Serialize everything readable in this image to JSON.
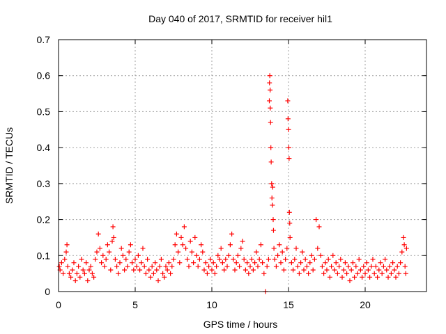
{
  "chart_data": {
    "type": "scatter",
    "title": "Day 040 of 2017, SRMTID for receiver hil1",
    "xlabel": "GPS time / hours",
    "ylabel": "SRMTID / TECUs",
    "xlim": [
      0,
      24
    ],
    "ylim": [
      0,
      0.7
    ],
    "xticks": [
      0,
      5,
      10,
      15,
      20
    ],
    "yticks": [
      0,
      0.1,
      0.2,
      0.3,
      0.4,
      0.5,
      0.6,
      0.7
    ],
    "grid": true,
    "marker": "+",
    "color": "#ff0000",
    "series": [
      {
        "name": "SRMTID",
        "points": [
          [
            0.05,
            0.07
          ],
          [
            0.1,
            0.06
          ],
          [
            0.2,
            0.08
          ],
          [
            0.3,
            0.05
          ],
          [
            0.4,
            0.09
          ],
          [
            0.5,
            0.11
          ],
          [
            0.55,
            0.13
          ],
          [
            0.6,
            0.07
          ],
          [
            0.7,
            0.05
          ],
          [
            0.8,
            0.04
          ],
          [
            0.9,
            0.06
          ],
          [
            1.0,
            0.08
          ],
          [
            1.1,
            0.03
          ],
          [
            1.2,
            0.05
          ],
          [
            1.3,
            0.07
          ],
          [
            1.4,
            0.04
          ],
          [
            1.5,
            0.09
          ],
          [
            1.6,
            0.06
          ],
          [
            1.7,
            0.05
          ],
          [
            1.8,
            0.08
          ],
          [
            1.9,
            0.03
          ],
          [
            2.0,
            0.06
          ],
          [
            2.1,
            0.07
          ],
          [
            2.2,
            0.05
          ],
          [
            2.3,
            0.04
          ],
          [
            2.4,
            0.09
          ],
          [
            2.5,
            0.11
          ],
          [
            2.6,
            0.16
          ],
          [
            2.7,
            0.12
          ],
          [
            2.8,
            0.08
          ],
          [
            2.9,
            0.1
          ],
          [
            3.0,
            0.07
          ],
          [
            3.1,
            0.09
          ],
          [
            3.2,
            0.13
          ],
          [
            3.3,
            0.11
          ],
          [
            3.4,
            0.06
          ],
          [
            3.5,
            0.14
          ],
          [
            3.55,
            0.18
          ],
          [
            3.6,
            0.15
          ],
          [
            3.7,
            0.09
          ],
          [
            3.8,
            0.07
          ],
          [
            3.9,
            0.05
          ],
          [
            4.0,
            0.08
          ],
          [
            4.1,
            0.12
          ],
          [
            4.2,
            0.1
          ],
          [
            4.3,
            0.06
          ],
          [
            4.4,
            0.09
          ],
          [
            4.5,
            0.07
          ],
          [
            4.6,
            0.11
          ],
          [
            4.7,
            0.13
          ],
          [
            4.8,
            0.08
          ],
          [
            4.9,
            0.06
          ],
          [
            5.0,
            0.09
          ],
          [
            5.1,
            0.07
          ],
          [
            5.2,
            0.1
          ],
          [
            5.3,
            0.06
          ],
          [
            5.4,
            0.08
          ],
          [
            5.5,
            0.12
          ],
          [
            5.6,
            0.07
          ],
          [
            5.7,
            0.05
          ],
          [
            5.8,
            0.09
          ],
          [
            5.9,
            0.06
          ],
          [
            6.0,
            0.04
          ],
          [
            6.1,
            0.07
          ],
          [
            6.2,
            0.05
          ],
          [
            6.3,
            0.08
          ],
          [
            6.4,
            0.06
          ],
          [
            6.5,
            0.03
          ],
          [
            6.6,
            0.07
          ],
          [
            6.7,
            0.09
          ],
          [
            6.8,
            0.05
          ],
          [
            6.9,
            0.04
          ],
          [
            7.0,
            0.07
          ],
          [
            7.1,
            0.06
          ],
          [
            7.2,
            0.08
          ],
          [
            7.3,
            0.05
          ],
          [
            7.4,
            0.07
          ],
          [
            7.5,
            0.09
          ],
          [
            7.6,
            0.13
          ],
          [
            7.7,
            0.16
          ],
          [
            7.8,
            0.11
          ],
          [
            7.9,
            0.08
          ],
          [
            8.0,
            0.15
          ],
          [
            8.1,
            0.13
          ],
          [
            8.2,
            0.18
          ],
          [
            8.3,
            0.12
          ],
          [
            8.4,
            0.09
          ],
          [
            8.5,
            0.07
          ],
          [
            8.6,
            0.14
          ],
          [
            8.7,
            0.11
          ],
          [
            8.8,
            0.08
          ],
          [
            8.9,
            0.15
          ],
          [
            9.0,
            0.1
          ],
          [
            9.1,
            0.07
          ],
          [
            9.2,
            0.09
          ],
          [
            9.3,
            0.13
          ],
          [
            9.4,
            0.11
          ],
          [
            9.5,
            0.06
          ],
          [
            9.6,
            0.08
          ],
          [
            9.7,
            0.05
          ],
          [
            9.8,
            0.07
          ],
          [
            9.9,
            0.09
          ],
          [
            10.0,
            0.06
          ],
          [
            10.1,
            0.08
          ],
          [
            10.2,
            0.05
          ],
          [
            10.3,
            0.07
          ],
          [
            10.4,
            0.1
          ],
          [
            10.5,
            0.09
          ],
          [
            10.6,
            0.12
          ],
          [
            10.7,
            0.08
          ],
          [
            10.8,
            0.06
          ],
          [
            10.9,
            0.09
          ],
          [
            11.0,
            0.07
          ],
          [
            11.1,
            0.1
          ],
          [
            11.2,
            0.13
          ],
          [
            11.3,
            0.16
          ],
          [
            11.4,
            0.09
          ],
          [
            11.5,
            0.06
          ],
          [
            11.6,
            0.08
          ],
          [
            11.7,
            0.1
          ],
          [
            11.8,
            0.07
          ],
          [
            11.9,
            0.12
          ],
          [
            12.0,
            0.14
          ],
          [
            12.1,
            0.09
          ],
          [
            12.2,
            0.06
          ],
          [
            12.3,
            0.08
          ],
          [
            12.4,
            0.05
          ],
          [
            12.5,
            0.07
          ],
          [
            12.6,
            0.09
          ],
          [
            12.7,
            0.06
          ],
          [
            12.8,
            0.08
          ],
          [
            12.9,
            0.11
          ],
          [
            13.0,
            0.07
          ],
          [
            13.1,
            0.09
          ],
          [
            13.2,
            0.13
          ],
          [
            13.3,
            0.08
          ],
          [
            13.4,
            0.05
          ],
          [
            13.5,
            0.0
          ],
          [
            13.6,
            0.07
          ],
          [
            13.7,
            0.09
          ],
          [
            13.75,
            0.53
          ],
          [
            13.76,
            0.58
          ],
          [
            13.78,
            0.6
          ],
          [
            13.8,
            0.56
          ],
          [
            13.81,
            0.51
          ],
          [
            13.83,
            0.47
          ],
          [
            13.85,
            0.4
          ],
          [
            13.87,
            0.36
          ],
          [
            13.9,
            0.3
          ],
          [
            13.92,
            0.26
          ],
          [
            13.95,
            0.24
          ],
          [
            13.97,
            0.29
          ],
          [
            14.0,
            0.2
          ],
          [
            14.02,
            0.17
          ],
          [
            14.05,
            0.12
          ],
          [
            14.1,
            0.09
          ],
          [
            14.2,
            0.07
          ],
          [
            14.3,
            0.1
          ],
          [
            14.4,
            0.13
          ],
          [
            14.5,
            0.08
          ],
          [
            14.6,
            0.11
          ],
          [
            14.7,
            0.06
          ],
          [
            14.8,
            0.09
          ],
          [
            14.9,
            0.12
          ],
          [
            14.95,
            0.53
          ],
          [
            14.97,
            0.48
          ],
          [
            15.0,
            0.45
          ],
          [
            15.02,
            0.4
          ],
          [
            15.04,
            0.37
          ],
          [
            15.06,
            0.22
          ],
          [
            15.08,
            0.19
          ],
          [
            15.1,
            0.15
          ],
          [
            15.2,
            0.08
          ],
          [
            15.3,
            0.06
          ],
          [
            15.4,
            0.09
          ],
          [
            15.5,
            0.12
          ],
          [
            15.6,
            0.07
          ],
          [
            15.7,
            0.05
          ],
          [
            15.8,
            0.08
          ],
          [
            15.9,
            0.11
          ],
          [
            16.0,
            0.06
          ],
          [
            16.1,
            0.09
          ],
          [
            16.2,
            0.07
          ],
          [
            16.3,
            0.05
          ],
          [
            16.4,
            0.08
          ],
          [
            16.5,
            0.1
          ],
          [
            16.6,
            0.06
          ],
          [
            16.7,
            0.09
          ],
          [
            16.8,
            0.2
          ],
          [
            16.9,
            0.12
          ],
          [
            17.0,
            0.18
          ],
          [
            17.1,
            0.1
          ],
          [
            17.2,
            0.07
          ],
          [
            17.3,
            0.05
          ],
          [
            17.4,
            0.08
          ],
          [
            17.5,
            0.06
          ],
          [
            17.6,
            0.09
          ],
          [
            17.7,
            0.04
          ],
          [
            17.8,
            0.07
          ],
          [
            17.9,
            0.1
          ],
          [
            18.0,
            0.06
          ],
          [
            18.1,
            0.08
          ],
          [
            18.2,
            0.05
          ],
          [
            18.3,
            0.07
          ],
          [
            18.4,
            0.09
          ],
          [
            18.5,
            0.04
          ],
          [
            18.6,
            0.06
          ],
          [
            18.7,
            0.08
          ],
          [
            18.8,
            0.05
          ],
          [
            18.9,
            0.07
          ],
          [
            19.0,
            0.03
          ],
          [
            19.1,
            0.06
          ],
          [
            19.2,
            0.08
          ],
          [
            19.3,
            0.04
          ],
          [
            19.4,
            0.07
          ],
          [
            19.5,
            0.05
          ],
          [
            19.6,
            0.09
          ],
          [
            19.7,
            0.06
          ],
          [
            19.8,
            0.04
          ],
          [
            19.9,
            0.07
          ],
          [
            20.0,
            0.05
          ],
          [
            20.1,
            0.08
          ],
          [
            20.2,
            0.06
          ],
          [
            20.3,
            0.04
          ],
          [
            20.4,
            0.07
          ],
          [
            20.5,
            0.09
          ],
          [
            20.6,
            0.05
          ],
          [
            20.7,
            0.07
          ],
          [
            20.8,
            0.04
          ],
          [
            20.9,
            0.06
          ],
          [
            21.0,
            0.08
          ],
          [
            21.1,
            0.05
          ],
          [
            21.2,
            0.07
          ],
          [
            21.3,
            0.09
          ],
          [
            21.4,
            0.06
          ],
          [
            21.5,
            0.04
          ],
          [
            21.6,
            0.07
          ],
          [
            21.7,
            0.05
          ],
          [
            21.8,
            0.08
          ],
          [
            21.9,
            0.06
          ],
          [
            22.0,
            0.04
          ],
          [
            22.1,
            0.07
          ],
          [
            22.2,
            0.05
          ],
          [
            22.3,
            0.08
          ],
          [
            22.4,
            0.11
          ],
          [
            22.5,
            0.15
          ],
          [
            22.55,
            0.13
          ],
          [
            22.6,
            0.07
          ],
          [
            22.65,
            0.05
          ],
          [
            22.7,
            0.12
          ]
        ]
      }
    ]
  }
}
